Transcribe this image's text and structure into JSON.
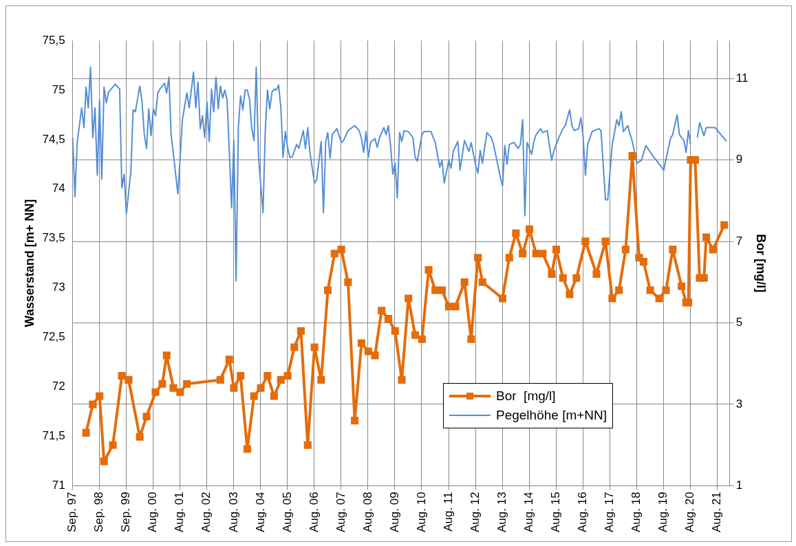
{
  "chart_data": {
    "type": "line",
    "xlim": [
      "1997-09-01",
      "2022-02-15"
    ],
    "xticks": [
      {
        "value": "1997-09-01",
        "label": "Sep. 97"
      },
      {
        "value": "1998-09-01",
        "label": "Sep. 98"
      },
      {
        "value": "1999-09-01",
        "label": "Sep. 99"
      },
      {
        "value": "2000-08-31",
        "label": "Aug. 00"
      },
      {
        "value": "2001-08-31",
        "label": "Aug. 01"
      },
      {
        "value": "2002-08-31",
        "label": "Aug. 02"
      },
      {
        "value": "2003-08-31",
        "label": "Aug. 03"
      },
      {
        "value": "2004-08-30",
        "label": "Aug. 04"
      },
      {
        "value": "2005-08-30",
        "label": "Aug. 05"
      },
      {
        "value": "2006-08-30",
        "label": "Aug. 06"
      },
      {
        "value": "2007-08-30",
        "label": "Aug. 07"
      },
      {
        "value": "2008-08-29",
        "label": "Aug. 08"
      },
      {
        "value": "2009-08-29",
        "label": "Aug. 09"
      },
      {
        "value": "2010-08-29",
        "label": "Aug. 10"
      },
      {
        "value": "2011-08-29",
        "label": "Aug. 11"
      },
      {
        "value": "2012-08-28",
        "label": "Aug. 12"
      },
      {
        "value": "2013-08-28",
        "label": "Aug. 13"
      },
      {
        "value": "2014-08-28",
        "label": "Aug. 14"
      },
      {
        "value": "2015-08-28",
        "label": "Aug. 15"
      },
      {
        "value": "2016-08-27",
        "label": "Aug. 16"
      },
      {
        "value": "2017-08-27",
        "label": "Aug. 17"
      },
      {
        "value": "2018-08-27",
        "label": "Aug. 18"
      },
      {
        "value": "2019-08-27",
        "label": "Aug. 19"
      },
      {
        "value": "2020-08-26",
        "label": "Aug. 20"
      },
      {
        "value": "2021-08-26",
        "label": "Aug. 21"
      }
    ],
    "ylabel": "Wasserstand [m+ NN]",
    "y2label": "Bor [mg/l]",
    "ylim": [
      71,
      75.5
    ],
    "yticks": [
      71,
      {
        "value": 71.5,
        "label": "71,5"
      },
      72,
      {
        "value": 72.5,
        "label": "72,5"
      },
      73,
      {
        "value": 73.5,
        "label": "73,5"
      },
      74,
      {
        "value": 74.5,
        "label": "74,5"
      },
      75,
      {
        "value": 75.5,
        "label": "75,5"
      }
    ],
    "y2lim": [
      1,
      11.93
    ],
    "y2ticks": [
      1,
      3,
      5,
      7,
      9,
      11
    ],
    "grid": true,
    "legend": "bottom right",
    "marker": "square",
    "series": [
      {
        "name": "Bor  [mg/l]",
        "color": "#e46c0a",
        "axis": "y2",
        "x": [
          "1998-03",
          "1998-06",
          "1998-09",
          "1998-11",
          "1999-03",
          "1999-07",
          "1999-10",
          "2000-03",
          "2000-06",
          "2000-10",
          "2001-01",
          "2001-03",
          "2001-06",
          "2001-09",
          "2001-12",
          "2003-03",
          "2003-07",
          "2003-09",
          "2003-12",
          "2004-03",
          "2004-06",
          "2004-09",
          "2004-12",
          "2005-03",
          "2005-06",
          "2005-09",
          "2005-12",
          "2006-03",
          "2006-06",
          "2006-09",
          "2006-12",
          "2007-03",
          "2007-06",
          "2007-09",
          "2007-12",
          "2008-03",
          "2008-06",
          "2008-09",
          "2008-12",
          "2009-03",
          "2009-06",
          "2009-09",
          "2009-12",
          "2010-03",
          "2010-06",
          "2010-09",
          "2010-12",
          "2011-03",
          "2011-06",
          "2011-09",
          "2011-12",
          "2012-04",
          "2012-07",
          "2012-10",
          "2012-12",
          "2013-09",
          "2013-12",
          "2014-03",
          "2014-06",
          "2014-09",
          "2014-12",
          "2015-03",
          "2015-07",
          "2015-09",
          "2015-12",
          "2016-03",
          "2016-06",
          "2016-10",
          "2017-03",
          "2017-07",
          "2017-10",
          "2018-01",
          "2018-04",
          "2018-07",
          "2018-10",
          "2018-12",
          "2019-03",
          "2019-07",
          "2019-10",
          "2020-01",
          "2020-05",
          "2020-07",
          "2020-08",
          "2020-09",
          "2020-11",
          "2021-01",
          "2021-03",
          "2021-04",
          "2021-07",
          "2021-12"
        ],
        "values": [
          2.3,
          3.0,
          3.2,
          1.6,
          2.0,
          3.7,
          3.6,
          2.2,
          2.7,
          3.3,
          3.5,
          4.2,
          3.4,
          3.3,
          3.5,
          3.6,
          4.1,
          3.4,
          3.7,
          1.9,
          3.2,
          3.4,
          3.7,
          3.2,
          3.6,
          3.7,
          4.4,
          4.8,
          2.0,
          4.4,
          3.6,
          5.8,
          6.7,
          6.8,
          6.0,
          2.6,
          4.5,
          4.3,
          4.2,
          5.3,
          5.1,
          4.8,
          3.6,
          5.6,
          4.7,
          4.6,
          6.3,
          5.8,
          5.8,
          5.4,
          5.4,
          6.0,
          4.6,
          6.6,
          6.0,
          5.6,
          6.6,
          7.2,
          6.7,
          7.3,
          6.7,
          6.7,
          6.2,
          6.8,
          6.1,
          5.7,
          6.1,
          7.0,
          6.2,
          7.0,
          5.6,
          5.8,
          6.8,
          9.1,
          6.6,
          6.5,
          5.8,
          5.6,
          5.8,
          6.8,
          5.9,
          5.5,
          5.5,
          9.0,
          9.0,
          6.1,
          6.1,
          7.1,
          6.8,
          7.4
        ]
      },
      {
        "name": "Pegelhöhe [m+NN]",
        "color": "#558ed5",
        "marker": "none",
        "x": [
          "1997-09",
          "1997-10",
          "1997-11",
          "1998-01",
          "1998-02",
          "1998-03",
          "1998-04",
          "1998-05",
          "1998-06",
          "1998-07",
          "1998-08",
          "1998-09",
          "1998-10",
          "1998-11",
          "1998-12",
          "1999-01",
          "1999-03",
          "1999-04",
          "1999-06",
          "1999-07",
          "1999-08",
          "1999-09",
          "1999-11",
          "1999-12",
          "2000-01",
          "2000-03",
          "2000-04",
          "2000-05",
          "2000-06",
          "2000-07",
          "2000-08",
          "2000-09",
          "2000-10",
          "2000-11",
          "2000-12",
          "2001-02",
          "2001-03",
          "2001-04",
          "2001-05",
          "2001-06",
          "2001-08",
          "2001-09",
          "2001-10",
          "2001-12",
          "2002-01",
          "2002-03",
          "2002-04",
          "2002-05",
          "2002-06",
          "2002-07",
          "2002-08",
          "2002-09",
          "2002-10",
          "2002-11",
          "2002-12",
          "2003-01",
          "2003-02",
          "2003-03",
          "2003-04",
          "2003-05",
          "2003-06",
          "2003-07",
          "2003-08",
          "2003-09",
          "2003-10",
          "2003-11",
          "2003-12",
          "2004-01",
          "2004-02",
          "2004-03",
          "2004-04",
          "2004-05",
          "2004-06",
          "2004-07",
          "2004-08",
          "2004-10",
          "2004-11",
          "2004-12",
          "2005-01",
          "2005-02",
          "2005-03",
          "2005-04",
          "2005-05",
          "2005-06",
          "2005-07",
          "2005-08",
          "2005-09",
          "2005-10",
          "2005-11",
          "2006-01",
          "2006-02",
          "2006-04",
          "2006-05",
          "2006-06",
          "2006-07",
          "2006-09",
          "2006-10",
          "2006-12",
          "2007-01",
          "2007-02",
          "2007-03",
          "2007-04",
          "2007-05",
          "2007-07",
          "2007-09",
          "2007-10",
          "2007-12",
          "2008-03",
          "2008-05",
          "2008-06",
          "2008-07",
          "2008-08",
          "2008-09",
          "2008-10",
          "2008-12",
          "2009-01",
          "2009-02",
          "2009-04",
          "2009-05",
          "2009-06",
          "2009-07",
          "2009-08",
          "2009-09",
          "2009-10",
          "2009-11",
          "2009-12",
          "2010-01",
          "2010-03",
          "2010-05",
          "2010-06",
          "2010-07",
          "2010-09",
          "2010-10",
          "2011-01",
          "2011-03",
          "2011-05",
          "2011-06",
          "2011-07",
          "2011-09",
          "2011-10",
          "2011-11",
          "2012-01",
          "2012-02",
          "2012-04",
          "2012-06",
          "2012-07",
          "2012-09",
          "2012-10",
          "2012-11",
          "2012-12",
          "2013-01",
          "2013-02",
          "2013-04",
          "2013-05",
          "2013-06",
          "2013-08",
          "2013-09",
          "2013-10",
          "2013-11",
          "2013-12",
          "2014-02",
          "2014-04",
          "2014-05",
          "2014-06",
          "2014-07",
          "2014-08",
          "2014-10",
          "2014-11",
          "2014-12",
          "2015-02",
          "2015-03",
          "2015-05",
          "2015-07",
          "2015-08",
          "2015-10",
          "2015-12",
          "2016-01",
          "2016-03",
          "2016-04",
          "2016-05",
          "2016-07",
          "2016-08",
          "2016-09",
          "2016-10",
          "2016-11",
          "2017-01",
          "2017-04",
          "2017-05",
          "2017-07",
          "2017-08",
          "2017-10",
          "2017-11",
          "2017-12",
          "2018-01",
          "2018-02",
          "2018-03",
          "2018-05",
          "2018-06",
          "2018-07",
          "2018-09",
          "2018-11",
          "2019-01",
          "2019-04",
          "2019-09",
          "2019-12",
          "2020-01",
          "2020-03",
          "2020-04",
          "2020-06",
          "2020-07",
          "2020-08",
          "2020-09",
          "2020-10",
          "2020-12",
          "2021-01",
          "2021-03",
          "2021-04",
          "2021-08",
          "2022-01"
        ],
        "values": [
          74.52,
          73.92,
          74.47,
          74.82,
          74.62,
          75.03,
          74.82,
          75.23,
          74.52,
          74.82,
          74.14,
          74.9,
          74.1,
          75.03,
          74.87,
          74.98,
          75.03,
          75.06,
          75.01,
          74.01,
          74.15,
          73.75,
          74.18,
          74.8,
          74.78,
          75.04,
          74.88,
          74.55,
          74.41,
          74.81,
          74.54,
          74.81,
          74.74,
          74.97,
          75.01,
          75.07,
          74.97,
          75.13,
          74.55,
          74.35,
          73.95,
          74.32,
          74.7,
          74.97,
          74.82,
          75.18,
          74.82,
          75.08,
          74.61,
          74.74,
          74.52,
          74.88,
          74.48,
          75.01,
          74.78,
          75.13,
          74.81,
          75.04,
          74.92,
          75.0,
          74.9,
          74.38,
          73.81,
          74.49,
          73.07,
          74.62,
          74.94,
          74.8,
          75.0,
          75.0,
          74.91,
          74.61,
          74.49,
          75.23,
          74.32,
          73.76,
          74.59,
          75.0,
          74.81,
          74.98,
          75.01,
          75.0,
          75.05,
          74.82,
          74.32,
          74.58,
          74.42,
          74.32,
          74.32,
          74.45,
          74.41,
          74.59,
          74.41,
          74.62,
          74.37,
          74.06,
          74.09,
          74.48,
          73.76,
          74.48,
          74.57,
          74.31,
          74.55,
          74.61,
          74.47,
          74.49,
          74.59,
          74.64,
          74.59,
          74.51,
          74.37,
          74.58,
          74.32,
          74.47,
          74.51,
          74.42,
          74.52,
          74.62,
          74.55,
          74.64,
          74.44,
          74.15,
          74.26,
          73.91,
          74.57,
          74.48,
          74.59,
          74.58,
          74.52,
          74.32,
          74.28,
          74.55,
          74.58,
          74.58,
          74.47,
          74.22,
          74.29,
          74.06,
          74.29,
          74.21,
          74.38,
          74.48,
          74.19,
          74.49,
          74.38,
          74.47,
          74.24,
          74.16,
          74.39,
          74.26,
          74.42,
          74.57,
          74.52,
          74.45,
          74.34,
          74.12,
          74.03,
          74.44,
          74.25,
          74.45,
          74.47,
          74.41,
          74.45,
          74.7,
          73.73,
          74.47,
          74.35,
          74.48,
          74.55,
          74.61,
          74.57,
          74.59,
          74.29,
          74.39,
          74.51,
          74.61,
          74.64,
          74.8,
          74.64,
          74.59,
          74.61,
          74.72,
          74.52,
          74.14,
          74.45,
          74.58,
          74.61,
          74.59,
          73.89,
          73.89,
          74.45,
          74.57,
          74.7,
          74.64,
          74.78,
          74.58,
          74.64,
          74.55,
          74.48,
          74.26,
          74.29,
          74.44,
          74.34,
          74.19,
          74.51,
          74.55,
          74.75,
          74.55,
          74.49,
          74.37,
          74.59,
          74.45,
          null,
          74.52,
          74.67,
          74.54,
          74.62,
          74.62,
          74.48
        ]
      }
    ]
  }
}
